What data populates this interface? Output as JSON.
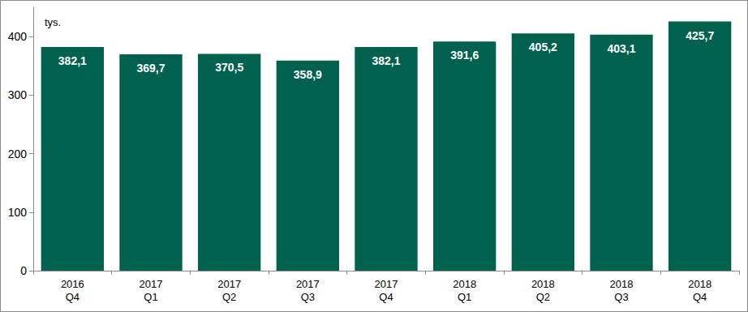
{
  "chart_data": {
    "type": "bar",
    "y_label": "tys.",
    "categories": [
      "2016\nQ4",
      "2017\nQ1",
      "2017\nQ2",
      "2017\nQ3",
      "2017\nQ4",
      "2018\nQ1",
      "2018\nQ2",
      "2018\nQ3",
      "2018\nQ4"
    ],
    "values": [
      382.1,
      369.7,
      370.5,
      358.9,
      382.1,
      391.6,
      405.2,
      403.1,
      425.7
    ],
    "value_labels": [
      "382,1",
      "369,7",
      "370,5",
      "358,9",
      "382,1",
      "391,6",
      "405,2",
      "403,1",
      "425,7"
    ],
    "color": "#00614f",
    "ylim": [
      0,
      450
    ],
    "yticks": [
      0,
      100,
      200,
      300,
      400
    ],
    "grid": false,
    "data_labels": true
  }
}
